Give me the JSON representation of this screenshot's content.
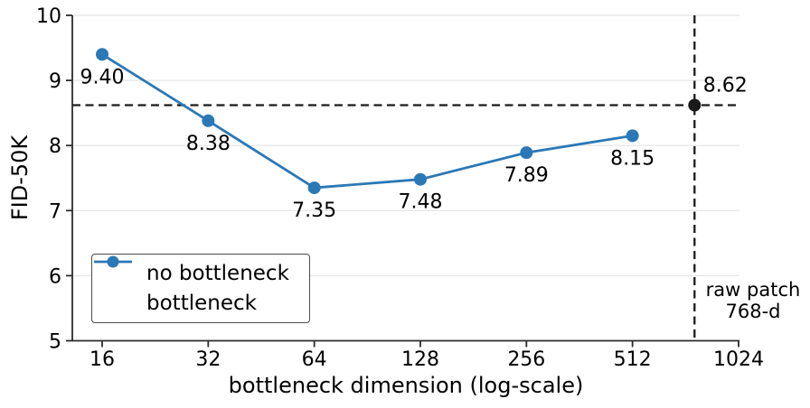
{
  "chart_data": {
    "type": "line",
    "title": "",
    "xlabel": "bottleneck dimension (log-scale)",
    "ylabel": "FID-50K",
    "x_scale": "log2",
    "x_ticks": [
      16,
      32,
      64,
      128,
      256,
      512,
      1024
    ],
    "y_ticks": [
      5,
      6,
      7,
      8,
      9,
      10
    ],
    "ylim": [
      5,
      10
    ],
    "grid": "horizontal",
    "legend_position": "lower-left",
    "series": [
      {
        "name": "bottleneck",
        "color": "#2b78b6",
        "line": true,
        "x": [
          16,
          32,
          64,
          128,
          256,
          512
        ],
        "y": [
          9.4,
          8.38,
          7.35,
          7.48,
          7.89,
          8.15
        ],
        "point_labels": [
          "9.40",
          "8.38",
          "7.35",
          "7.48",
          "7.89",
          "8.15"
        ],
        "label_offset": {
          "dx": 0,
          "dy": 24
        }
      },
      {
        "name": "no bottleneck",
        "color": "#1a1a1a",
        "line": false,
        "x": [
          768
        ],
        "y": [
          8.62
        ],
        "point_labels": [
          "8.62"
        ],
        "label_offset": {
          "dx": 34,
          "dy": -23
        }
      }
    ],
    "reference_lines": [
      {
        "orientation": "horizontal",
        "value": 8.62,
        "style": "dashed",
        "color": "#1a1a1a"
      },
      {
        "orientation": "vertical",
        "value": 768,
        "style": "dashed",
        "color": "#1a1a1a"
      }
    ]
  },
  "legend": {
    "items": [
      {
        "label": "no bottleneck",
        "marker": "dot",
        "color": "#1a1a1a"
      },
      {
        "label": "bottleneck",
        "marker": "line-dot",
        "color": "#2b78b6"
      }
    ]
  },
  "annotation": {
    "line1": "raw patch",
    "line2": "768-d"
  }
}
